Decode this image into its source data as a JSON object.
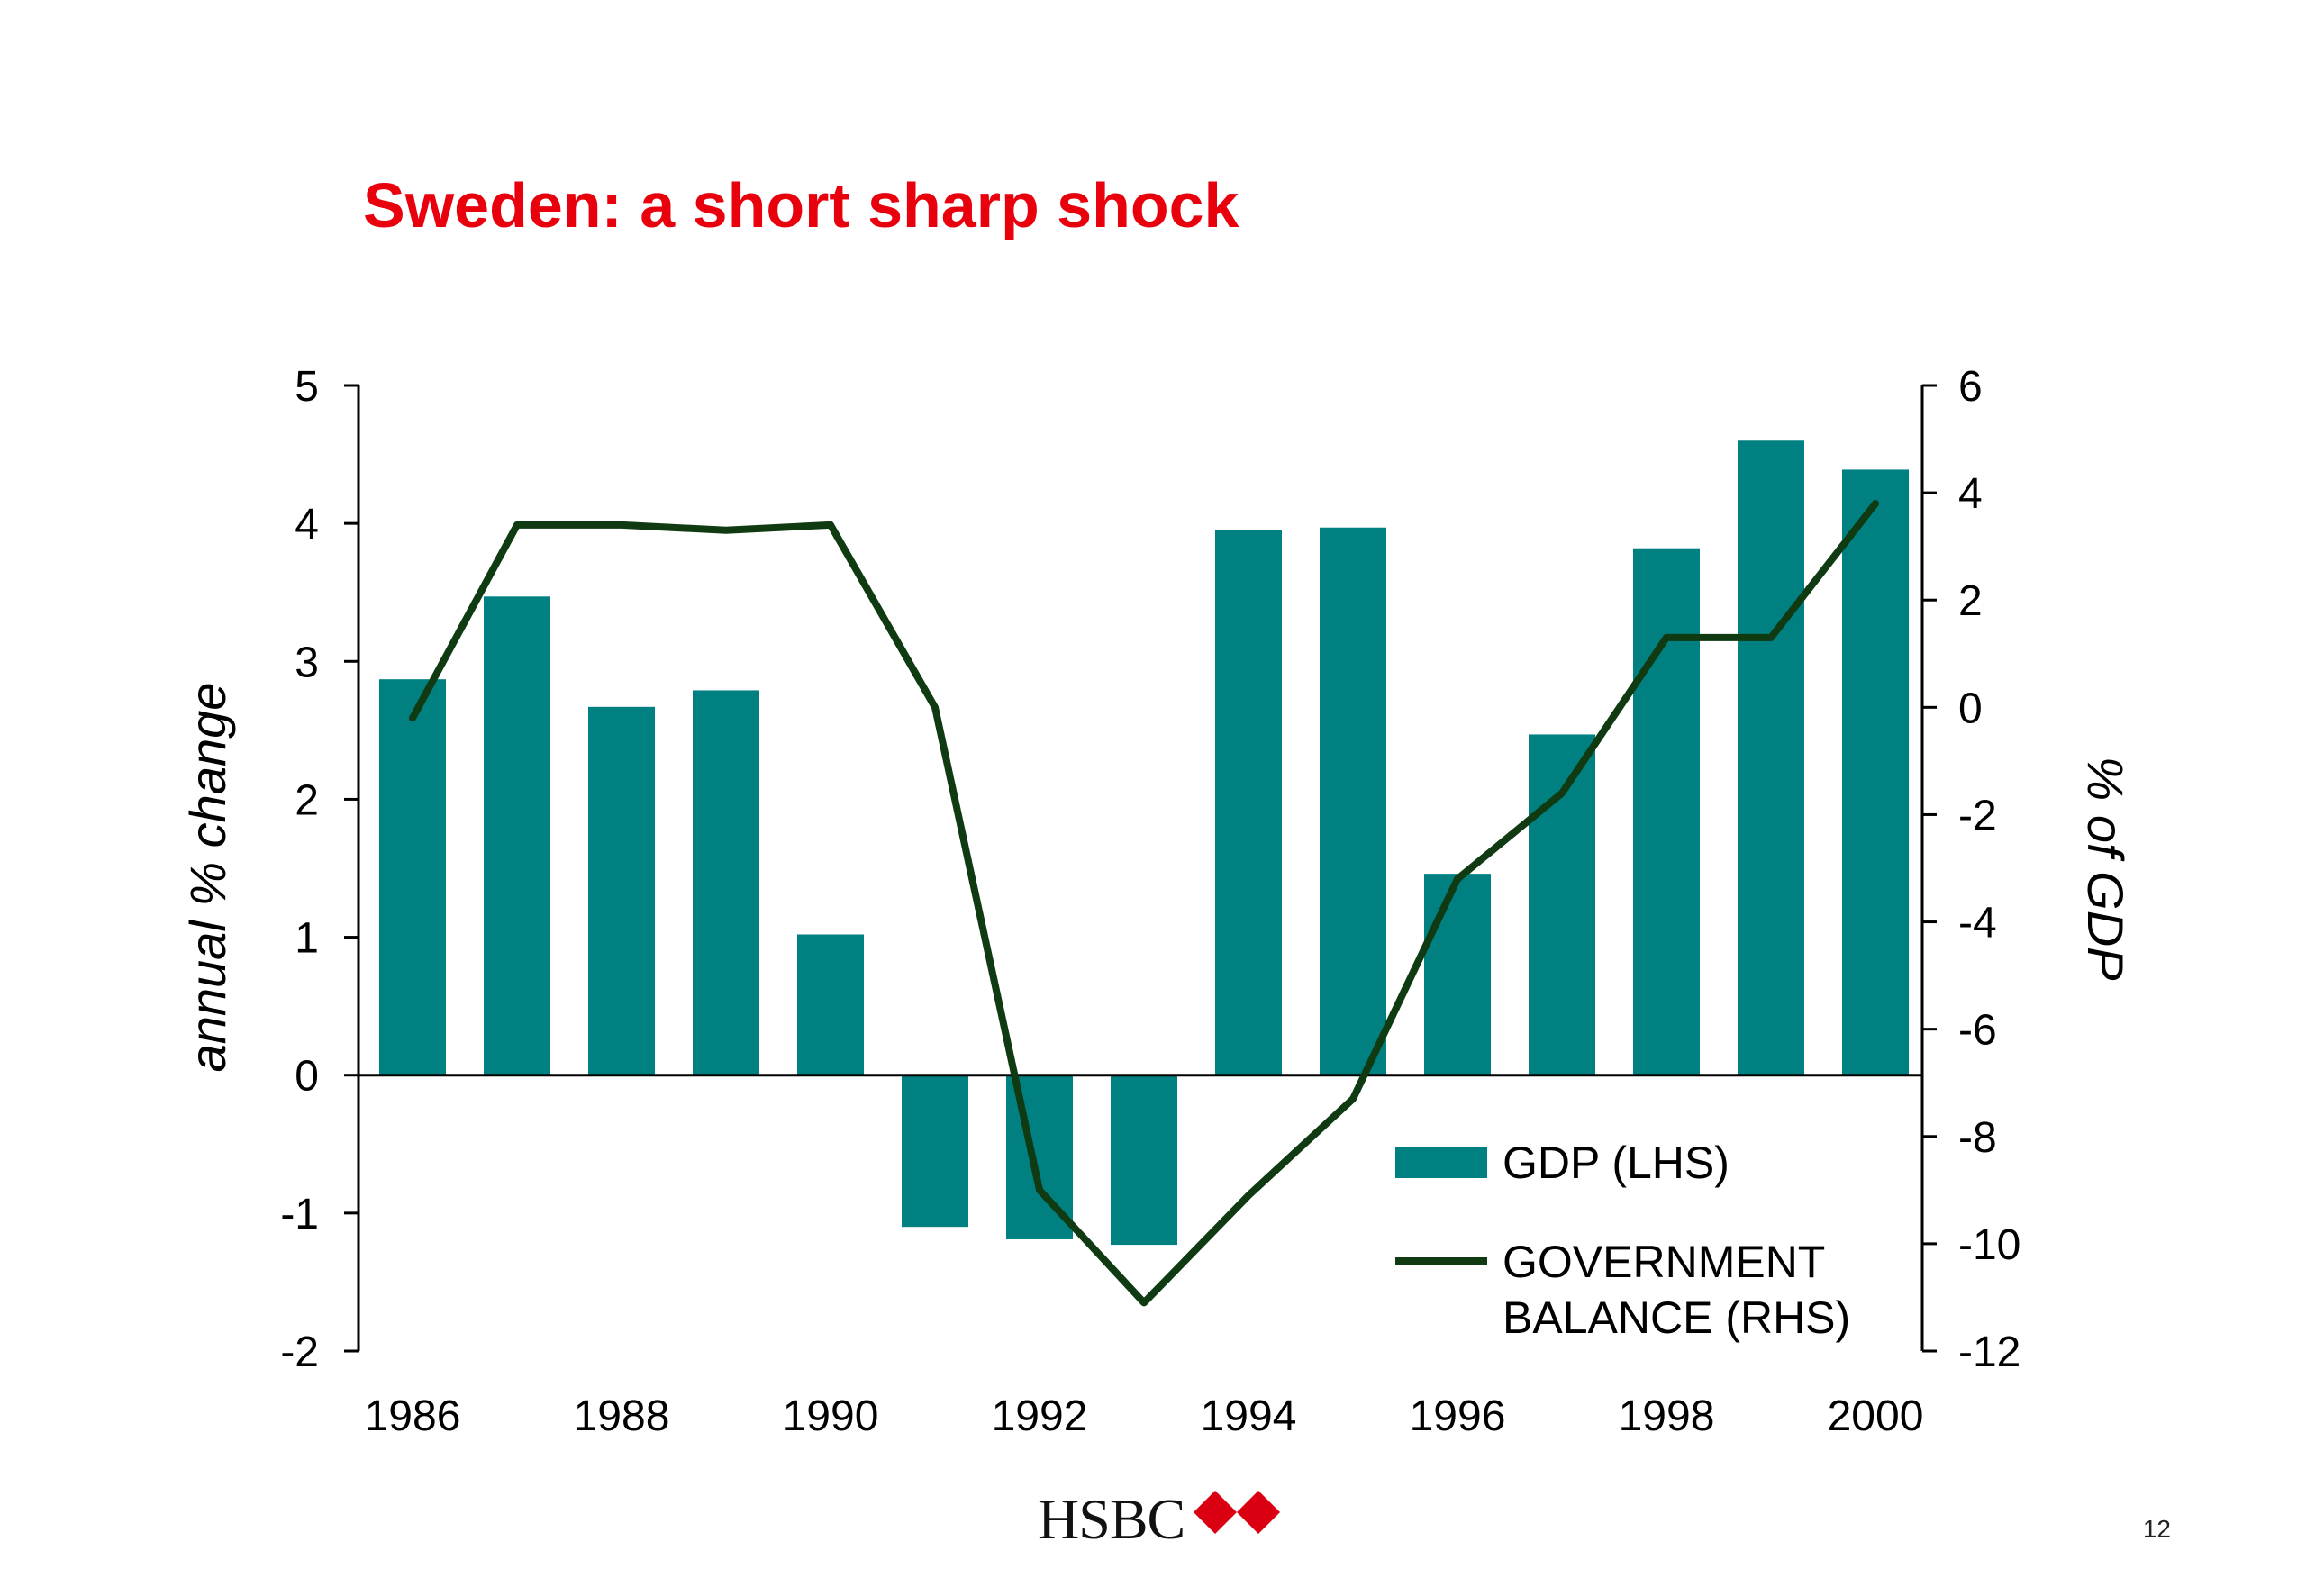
{
  "slide": {
    "title": "Sweden: a short sharp shock",
    "page_number": "12",
    "brand": {
      "name": "HSBC",
      "logo_icon": "hsbc-hexagon-logo",
      "colors": {
        "red": "#db0011",
        "white": "#ffffff"
      }
    }
  },
  "colors": {
    "title": "#e8000d",
    "bars": "#008080",
    "line": "#0f3a12",
    "axis": "#000000"
  },
  "chart_data": {
    "type": "bar",
    "title": "Sweden: a short sharp shock",
    "categories": [
      "1986",
      "1987",
      "1988",
      "1989",
      "1990",
      "1991",
      "1992",
      "1993",
      "1994",
      "1995",
      "1996",
      "1997",
      "1998",
      "1999",
      "2000"
    ],
    "x_tick_labels": [
      "1986",
      "1988",
      "1990",
      "1992",
      "1994",
      "1996",
      "1998",
      "2000"
    ],
    "ylabel": "annual % change",
    "y2label": "% of GDP",
    "ylim": [
      -2,
      5
    ],
    "y_ticks": [
      "5",
      "4",
      "3",
      "2",
      "1",
      "0",
      "-1",
      "-2"
    ],
    "y2lim": [
      -12,
      6
    ],
    "y2_ticks": [
      "6",
      "4",
      "2",
      "0",
      "-2",
      "-4",
      "-6",
      "-8",
      "-10",
      "-12"
    ],
    "grid": false,
    "legend_position": "bottom-right",
    "series": [
      {
        "name": "GDP (LHS)",
        "type": "bar",
        "axis": "left",
        "values": [
          2.87,
          3.47,
          2.67,
          2.79,
          1.02,
          -1.1,
          -1.19,
          -1.23,
          3.95,
          3.97,
          1.46,
          2.47,
          3.82,
          4.6,
          4.39
        ]
      },
      {
        "name": "GOVERNMENT BALANCE (RHS)",
        "legend_lines": [
          "GOVERNMENT",
          "BALANCE (RHS)"
        ],
        "type": "line",
        "axis": "right",
        "values": [
          -0.2,
          3.4,
          3.4,
          3.3,
          3.4,
          0.0,
          -9.0,
          -11.1,
          -9.1,
          -7.3,
          -3.2,
          -1.6,
          1.3,
          1.3,
          3.8
        ]
      }
    ]
  }
}
